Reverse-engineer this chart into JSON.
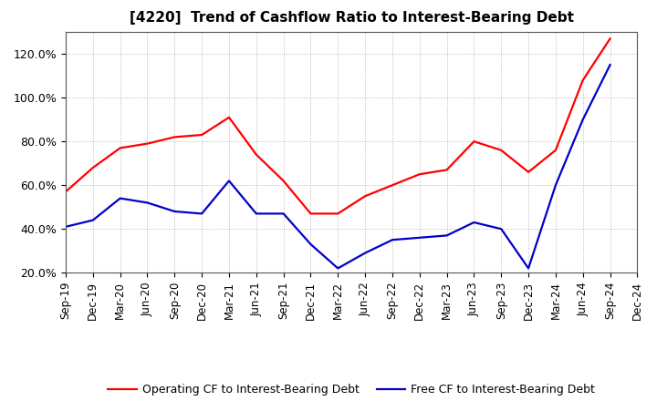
{
  "title": "[4220]  Trend of Cashflow Ratio to Interest-Bearing Debt",
  "x_labels": [
    "Sep-19",
    "Dec-19",
    "Mar-20",
    "Jun-20",
    "Sep-20",
    "Dec-20",
    "Mar-21",
    "Jun-21",
    "Sep-21",
    "Dec-21",
    "Mar-22",
    "Jun-22",
    "Sep-22",
    "Dec-22",
    "Mar-23",
    "Jun-23",
    "Sep-23",
    "Dec-23",
    "Mar-24",
    "Jun-24",
    "Sep-24",
    "Dec-24"
  ],
  "operating_cf": [
    57,
    68,
    77,
    79,
    82,
    83,
    91,
    74,
    62,
    47,
    47,
    55,
    60,
    65,
    67,
    80,
    76,
    66,
    76,
    108,
    127,
    null
  ],
  "free_cf": [
    41,
    44,
    54,
    52,
    48,
    47,
    62,
    47,
    47,
    33,
    22,
    29,
    35,
    36,
    37,
    43,
    40,
    22,
    60,
    90,
    115,
    null
  ],
  "operating_color": "#FF0000",
  "free_color": "#0000CC",
  "ylim": [
    20,
    130
  ],
  "yticks": [
    20,
    40,
    60,
    80,
    100,
    120
  ],
  "ytick_labels": [
    "20.0%",
    "40.0%",
    "60.0%",
    "80.0%",
    "100.0%",
    "120.0%"
  ],
  "legend_operating": "Operating CF to Interest-Bearing Debt",
  "legend_free": "Free CF to Interest-Bearing Debt",
  "bg_color": "#FFFFFF",
  "plot_bg_color": "#FFFFFF",
  "title_fontsize": 11,
  "tick_fontsize": 8.5,
  "ytick_fontsize": 9,
  "legend_fontsize": 9,
  "line_width": 1.6,
  "grid_color": "#AAAAAA",
  "spine_color": "#555555"
}
